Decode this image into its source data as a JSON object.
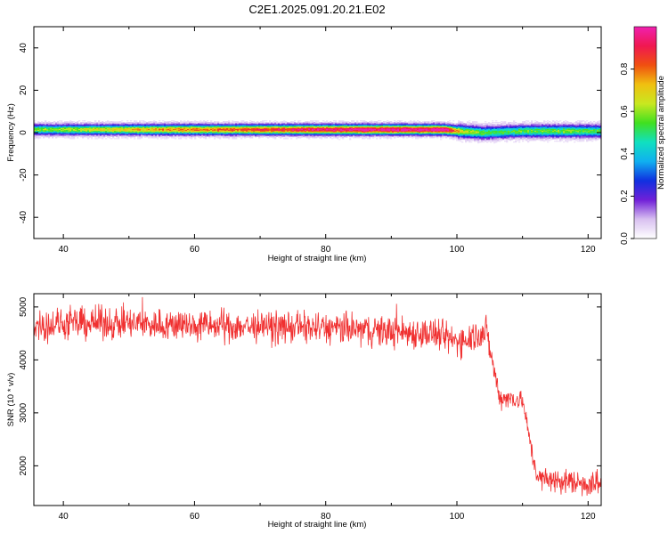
{
  "title": "C2E1.2025.091.20.21.E02",
  "chart_data": [
    {
      "type": "heatmap",
      "xlabel": "Height of straight line (km)",
      "ylabel": "Frequency (Hz)",
      "xlim": [
        35.5,
        122
      ],
      "ylim": [
        -50,
        50
      ],
      "xticks": [
        40,
        60,
        80,
        100,
        120
      ],
      "yticks": [
        40,
        20,
        0,
        -20,
        -40
      ],
      "colorbar": {
        "label": "Normalized spectral amplitude",
        "range": [
          0,
          1
        ],
        "ticks": [
          "0.0",
          "0.2",
          "0.4",
          "0.6",
          "0.8"
        ],
        "colors": [
          "#ffffff",
          "#d8c0f0",
          "#7020d8",
          "#1030e0",
          "#10b0f0",
          "#10e0c0",
          "#40e020",
          "#c8e820",
          "#f0c010",
          "#f05010",
          "#f01850",
          "#f020b0"
        ]
      },
      "band": {
        "center_hz": [
          {
            "x": 36,
            "f": 1.5
          },
          {
            "x": 60,
            "f": 1.5
          },
          {
            "x": 80,
            "f": 1.5
          },
          {
            "x": 98,
            "f": 1.5
          },
          {
            "x": 100,
            "f": 0.8
          },
          {
            "x": 104,
            "f": 0.0
          },
          {
            "x": 110,
            "f": 0.8
          },
          {
            "x": 122,
            "f": 0.8
          }
        ],
        "peak_amplitude": [
          {
            "x": 36,
            "a": 0.55
          },
          {
            "x": 50,
            "a": 0.7
          },
          {
            "x": 70,
            "a": 0.85
          },
          {
            "x": 85,
            "a": 1.0
          },
          {
            "x": 98,
            "a": 1.0
          },
          {
            "x": 101,
            "a": 0.6
          },
          {
            "x": 106,
            "a": 0.5
          },
          {
            "x": 115,
            "a": 0.55
          },
          {
            "x": 122,
            "a": 0.5
          }
        ]
      }
    },
    {
      "type": "line",
      "xlabel": "Height of straight line (km)",
      "ylabel": "SNR (10 * v/v)",
      "xlim": [
        35.5,
        122
      ],
      "ylim": [
        1250,
        5250
      ],
      "xticks": [
        40,
        60,
        80,
        100,
        120
      ],
      "yticks": [
        5000,
        4000,
        3000,
        2000
      ],
      "series": [
        {
          "color": "#f03030",
          "trend": [
            {
              "x": 35.5,
              "y": 4650
            },
            {
              "x": 45,
              "y": 4700
            },
            {
              "x": 60,
              "y": 4650
            },
            {
              "x": 80,
              "y": 4600
            },
            {
              "x": 96,
              "y": 4500
            },
            {
              "x": 100,
              "y": 4350
            },
            {
              "x": 104.5,
              "y": 4550
            },
            {
              "x": 105.5,
              "y": 3900
            },
            {
              "x": 106.5,
              "y": 3300
            },
            {
              "x": 110,
              "y": 3250
            },
            {
              "x": 111.5,
              "y": 2200
            },
            {
              "x": 112.5,
              "y": 1750
            },
            {
              "x": 122,
              "y": 1650
            }
          ],
          "noise_amplitude": [
            {
              "x": 35.5,
              "a": 250
            },
            {
              "x": 104,
              "a": 250
            },
            {
              "x": 106,
              "a": 180
            },
            {
              "x": 111,
              "a": 150
            },
            {
              "x": 112,
              "a": 180
            },
            {
              "x": 122,
              "a": 220
            }
          ]
        }
      ]
    }
  ]
}
